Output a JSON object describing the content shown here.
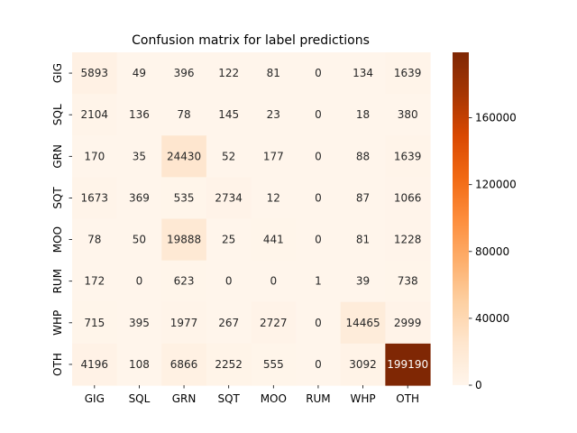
{
  "chart_data": {
    "type": "heatmap",
    "title": "Confusion matrix for label predictions",
    "row_labels": [
      "GIG",
      "SQL",
      "GRN",
      "SQT",
      "MOO",
      "RUM",
      "WHP",
      "OTH"
    ],
    "col_labels": [
      "GIG",
      "SQL",
      "GRN",
      "SQT",
      "MOO",
      "RUM",
      "WHP",
      "OTH"
    ],
    "values": [
      [
        5893,
        49,
        396,
        122,
        81,
        0,
        134,
        1639
      ],
      [
        2104,
        136,
        78,
        145,
        23,
        0,
        18,
        380
      ],
      [
        170,
        35,
        24430,
        52,
        177,
        0,
        88,
        1639
      ],
      [
        1673,
        369,
        535,
        2734,
        12,
        0,
        87,
        1066
      ],
      [
        78,
        50,
        19888,
        25,
        441,
        0,
        81,
        1228
      ],
      [
        172,
        0,
        623,
        0,
        0,
        1,
        39,
        738
      ],
      [
        715,
        395,
        1977,
        267,
        2727,
        0,
        14465,
        2999
      ],
      [
        4196,
        108,
        6866,
        2252,
        555,
        0,
        3092,
        199190
      ]
    ],
    "colorbar": {
      "colormap": "Oranges",
      "range": [
        0,
        199190
      ],
      "ticks": [
        0,
        40000,
        80000,
        120000,
        160000
      ]
    },
    "xlabel": "",
    "ylabel": ""
  }
}
